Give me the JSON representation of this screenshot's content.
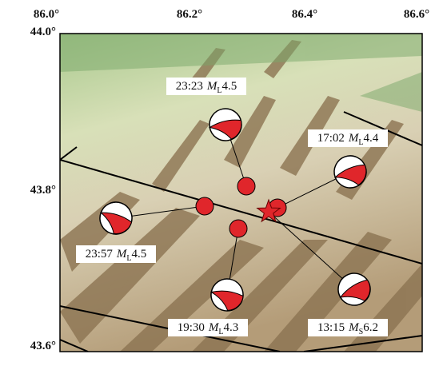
{
  "map": {
    "x_labels": [
      "86.0°",
      "86.2°",
      "86.4°",
      "86.6°"
    ],
    "y_labels": [
      "44.0°",
      "43.8°",
      "43.6°"
    ],
    "events": [
      {
        "time": "23:23",
        "mag_symbol": "M",
        "mag_type": "L",
        "magnitude": "4.5"
      },
      {
        "time": "17:02",
        "mag_symbol": "M",
        "mag_type": "L",
        "magnitude": "4.4"
      },
      {
        "time": "23:57",
        "mag_symbol": "M",
        "mag_type": "L",
        "magnitude": "4.5"
      },
      {
        "time": "19:30",
        "mag_symbol": "M",
        "mag_type": "L",
        "magnitude": "4.3"
      },
      {
        "time": "13:15",
        "mag_symbol": "M",
        "mag_type": "S",
        "magnitude": "6.2"
      }
    ]
  }
}
